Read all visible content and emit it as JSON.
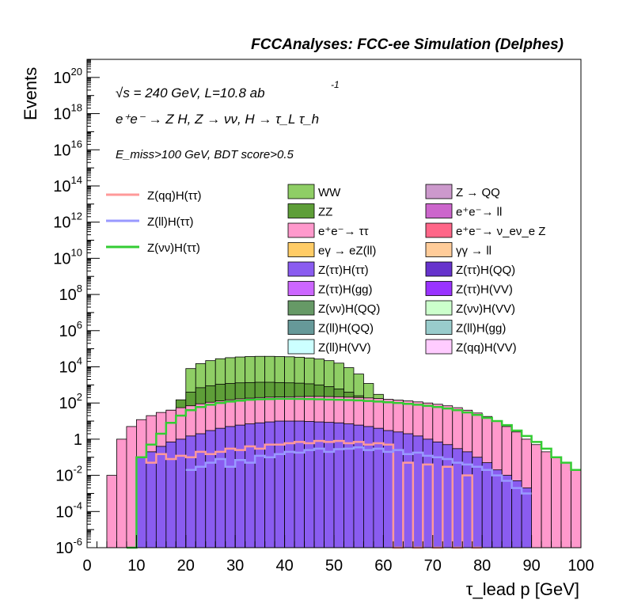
{
  "header": {
    "title": "FCCAnalyses: FCC-ee Simulation (Delphes)"
  },
  "annotations": {
    "energy": "√s = 240 GeV, L=10.8 ab",
    "energy_sup": "-1",
    "process": "e⁺e⁻ → Z H, Z → νν, H → τ_L τ_h",
    "cuts": "E_miss>100 GeV, BDT score>0.5"
  },
  "chart_data": {
    "type": "histogram",
    "title": "FCCAnalyses: FCC-ee Simulation (Delphes)",
    "xlabel": "τ_lead p [GeV]",
    "ylabel": "Events",
    "xlim": [
      0,
      100
    ],
    "ylim": [
      1e-06,
      1e+21
    ],
    "yscale": "log",
    "bin_width": 2,
    "x_ticks": [
      "0",
      "10",
      "20",
      "30",
      "40",
      "50",
      "60",
      "70",
      "80",
      "90",
      "100"
    ],
    "y_ticks": [
      "10^-6",
      "10^-4",
      "10^-2",
      "1",
      "10^2",
      "10^4",
      "10^6",
      "10^8",
      "10^10",
      "10^12",
      "10^14",
      "10^16",
      "10^18",
      "10^20"
    ],
    "legend_position": "top-right",
    "stack_envelopes": [
      {
        "name": "WW",
        "color": "#8fce65",
        "x_start": 20,
        "values": [
          8000,
          15000,
          22000,
          28000,
          32000,
          35000,
          37000,
          38000,
          38000,
          37000,
          36000,
          34000,
          31000,
          27000,
          22000,
          16000,
          9000,
          4000,
          1200,
          300
        ]
      },
      {
        "name": "ZZ",
        "color": "#5e9e38",
        "x_start": 10,
        "values": [
          0.5,
          2,
          10,
          40,
          150,
          400,
          700,
          900,
          1100,
          1200,
          1300,
          1350,
          1400,
          1400,
          1350,
          1300,
          1250,
          1150,
          1000,
          800,
          600,
          400,
          250,
          150,
          100,
          60,
          30,
          12,
          4,
          1,
          0.3,
          0.1,
          0.05,
          0.02,
          0.01,
          0.005,
          0.002,
          0.001,
          0.0005,
          0.0002,
          0.0001,
          5e-05,
          2e-05,
          1e-05,
          5e-06
        ]
      },
      {
        "name": "e⁺e⁻→ ττ",
        "color": "#ff99cc",
        "x_start": 4,
        "values": [
          0.01,
          1,
          5,
          12,
          20,
          30,
          40,
          55,
          70,
          90,
          110,
          130,
          150,
          170,
          185,
          200,
          210,
          215,
          220,
          225,
          230,
          230,
          225,
          220,
          210,
          200,
          190,
          175,
          160,
          145,
          130,
          115,
          100,
          85,
          70,
          55,
          40,
          28,
          18,
          10,
          5,
          2.5,
          1,
          0.5,
          0.2,
          0.1,
          0.05,
          0.02
        ]
      },
      {
        "name": "Z(ττ)H(ττ)",
        "color": "#8a5cf0",
        "x_start": 10,
        "values": [
          0.1,
          0.2,
          0.4,
          0.7,
          1,
          1.5,
          2,
          3,
          4,
          5,
          6,
          7,
          8,
          9,
          10,
          10,
          10,
          9.5,
          9,
          8.5,
          8,
          7,
          6,
          5,
          4,
          3,
          2.5,
          2,
          1.5,
          1,
          0.7,
          0.5,
          0.3,
          0.2,
          0.1,
          0.05,
          0.02,
          0.01,
          0.005,
          0.002
        ]
      }
    ],
    "series": [
      {
        "name": "Z(qq)H(ττ)",
        "color": "#ff9999",
        "type": "line",
        "x_start": 10,
        "values": [
          0.1,
          0.05,
          0.15,
          0.08,
          0.12,
          0.1,
          0.2,
          0.15,
          0.2,
          0.3,
          0.25,
          0.4,
          0.3,
          0.5,
          0.5,
          0.6,
          0.7,
          0.6,
          0.8,
          0.7,
          0.8,
          0.6,
          0.7,
          0.5,
          0.6,
          0.5,
          1e-06,
          0.05,
          1e-06,
          0.04,
          1e-06,
          0.03,
          1e-06,
          0.01,
          1e-06
        ]
      },
      {
        "name": "Z(ll)H(ττ)",
        "color": "#9999ff",
        "type": "line",
        "x_start": 20,
        "values": [
          0.02,
          0.03,
          0.05,
          0.08,
          0.03,
          0.07,
          0.05,
          0.12,
          0.1,
          0.15,
          0.2,
          0.18,
          0.25,
          0.3,
          0.2,
          0.28,
          0.3,
          0.35,
          0.25,
          0.3,
          0.2,
          0.25,
          0.15,
          0.18,
          0.12,
          0.1,
          0.08,
          0.05,
          0.04,
          0.03,
          0.02,
          0.01,
          0.005,
          0.002,
          0.001
        ]
      },
      {
        "name": "Z(νν)H(ττ)",
        "color": "#33cc33",
        "type": "line",
        "x_start": 8,
        "values": [
          1e-06,
          0.1,
          0.5,
          2,
          8,
          20,
          40,
          60,
          80,
          100,
          120,
          135,
          150,
          160,
          165,
          170,
          170,
          168,
          165,
          160,
          155,
          150,
          145,
          140,
          130,
          120,
          110,
          100,
          90,
          80,
          70,
          60,
          50,
          40,
          30,
          22,
          15,
          10,
          6,
          3,
          1.5,
          0.7,
          0.3,
          0.1,
          0.05,
          0.02
        ]
      }
    ],
    "legend": [
      {
        "name": "WW",
        "color": "#8fce65"
      },
      {
        "name": "Z → QQ",
        "color": "#cc99cc"
      },
      {
        "name": "ZZ",
        "color": "#5e9e38"
      },
      {
        "name": "e⁺e⁻→ ll",
        "color": "#cc66cc"
      },
      {
        "name": "e⁺e⁻→ ττ",
        "color": "#ff99cc"
      },
      {
        "name": "e⁺e⁻→ ν_eν_e Z",
        "color": "#ff6688"
      },
      {
        "name": "eγ → eZ(ll)",
        "color": "#ffcc66"
      },
      {
        "name": "γγ → ll",
        "color": "#ffcc99"
      },
      {
        "name": "Z(ττ)H(ττ)",
        "color": "#8a5cf0"
      },
      {
        "name": "Z(ττ)H(QQ)",
        "color": "#6633cc"
      },
      {
        "name": "Z(ττ)H(gg)",
        "color": "#cc66ff"
      },
      {
        "name": "Z(ττ)H(VV)",
        "color": "#9933ff"
      },
      {
        "name": "Z(νν)H(QQ)",
        "color": "#669966"
      },
      {
        "name": "Z(νν)H(VV)",
        "color": "#ccffcc"
      },
      {
        "name": "Z(ll)H(QQ)",
        "color": "#669999"
      },
      {
        "name": "Z(ll)H(gg)",
        "color": "#99cccc"
      },
      {
        "name": "Z(ll)H(VV)",
        "color": "#ccffff"
      },
      {
        "name": "Z(qq)H(VV)",
        "color": "#ffccff"
      }
    ],
    "legend_lines": [
      {
        "name": "Z(qq)H(ττ)",
        "color": "#ff9999"
      },
      {
        "name": "Z(ll)H(ττ)",
        "color": "#9999ff"
      },
      {
        "name": "Z(νν)H(ττ)",
        "color": "#33cc33"
      }
    ]
  }
}
